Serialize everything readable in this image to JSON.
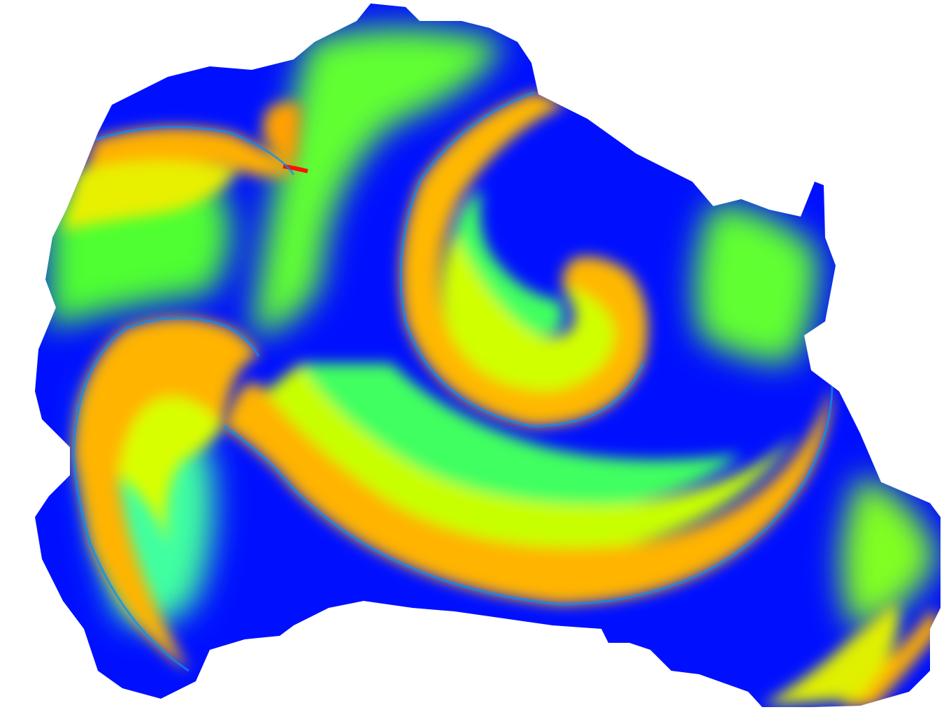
{
  "image": {
    "subject": "spiral-wave-phase-map",
    "palette": [
      "#0000ff",
      "#0080ff",
      "#00d0c0",
      "#40ff40",
      "#b0ff00",
      "#ffe000",
      "#ffa000",
      "#ff0000"
    ],
    "background": "#ffffff"
  }
}
